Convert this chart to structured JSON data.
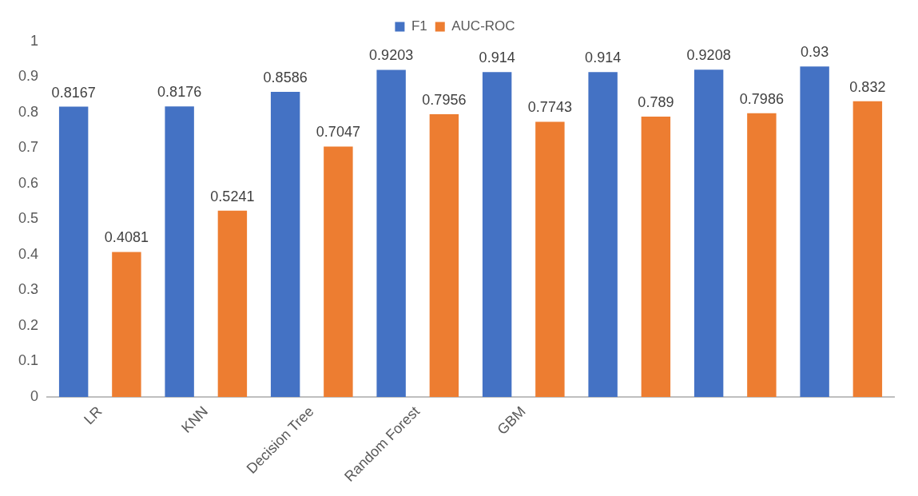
{
  "chart_data": {
    "type": "bar",
    "categories": [
      "LR",
      "KNN",
      "Decision Tree",
      "Random Forest",
      "GBM",
      null,
      null,
      null
    ],
    "series": [
      {
        "name": "F1",
        "color": "#4472c4",
        "values": [
          0.8167,
          0.8176,
          0.8586,
          0.9203,
          0.914,
          0.914,
          0.9208,
          0.93
        ]
      },
      {
        "name": "AUC-ROC",
        "color": "#ed7d31",
        "values": [
          0.4081,
          0.5241,
          0.7047,
          0.7956,
          0.7743,
          0.789,
          0.7986,
          0.832
        ]
      }
    ],
    "ylim": [
      0,
      1
    ],
    "yticks": [
      0,
      0.1,
      0.2,
      0.3,
      0.4,
      0.5,
      0.6,
      0.7,
      0.8,
      0.9,
      1
    ],
    "grid": false,
    "legend": "top",
    "data_labels": true
  }
}
